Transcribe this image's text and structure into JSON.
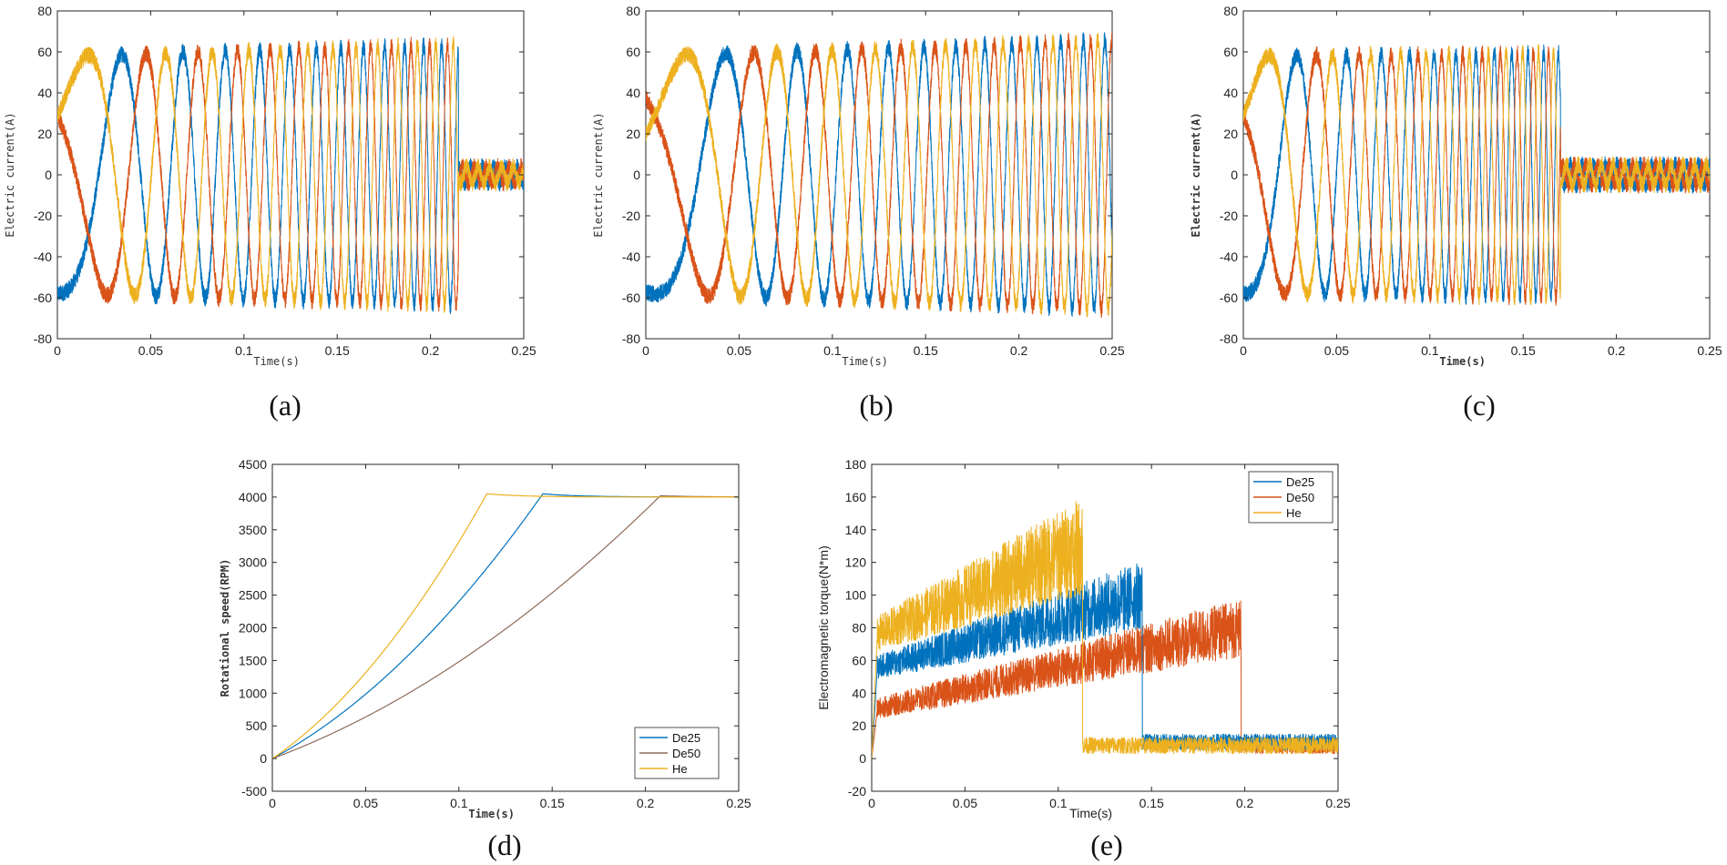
{
  "colors": {
    "phase_blue": "#0072BD",
    "phase_red": "#D95319",
    "phase_yellow": "#EDB120",
    "axis": "#262626"
  },
  "chart_data": [
    {
      "id": "a",
      "type": "line",
      "panel_label": "(a)",
      "xlabel": "Time(s)",
      "ylabel": "Electric current(A)",
      "xlim": [
        0,
        0.25
      ],
      "ylim": [
        -80,
        80
      ],
      "xticks": [
        0,
        0.05,
        0.1,
        0.15,
        0.2,
        0.25
      ],
      "xtick_labels": [
        "0",
        "0.05",
        "0.1",
        "0.15",
        "0.2",
        "0.25"
      ],
      "yticks": [
        -80,
        -60,
        -40,
        -20,
        0,
        20,
        40,
        60,
        80
      ],
      "legend": null,
      "series": [
        {
          "color": "#0072BD",
          "kind": "sine",
          "amp_start": 58,
          "amp_end": 64,
          "freq_start": 6,
          "freq_end": 110,
          "phase": -90,
          "t_end": 0.215,
          "ripple": 4,
          "residual_amp": 4
        },
        {
          "color": "#D95319",
          "kind": "sine",
          "amp_start": 58,
          "amp_end": 64,
          "freq_start": 6,
          "freq_end": 110,
          "phase": 150,
          "t_end": 0.215,
          "ripple": 4,
          "residual_amp": 4
        },
        {
          "color": "#EDB120",
          "kind": "sine",
          "amp_start": 58,
          "amp_end": 64,
          "freq_start": 6,
          "freq_end": 110,
          "phase": 30,
          "t_end": 0.215,
          "ripple": 4,
          "residual_amp": 4
        }
      ]
    },
    {
      "id": "b",
      "type": "line",
      "panel_label": "(b)",
      "xlabel": "Time(s)",
      "ylabel": "Electric current(A)",
      "xlim": [
        0,
        0.25
      ],
      "ylim": [
        -80,
        80
      ],
      "xticks": [
        0,
        0.05,
        0.1,
        0.15,
        0.2,
        0.25
      ],
      "xtick_labels": [
        "0",
        "0.05",
        "0.1",
        "0.15",
        "0.2",
        "0.25"
      ],
      "yticks": [
        -80,
        -60,
        -40,
        -20,
        0,
        20,
        40,
        60,
        80
      ],
      "legend": null,
      "series": [
        {
          "color": "#0072BD",
          "kind": "sine",
          "amp_start": 58,
          "amp_end": 66,
          "freq_start": 5,
          "freq_end": 90,
          "phase": -100,
          "t_end": 0.25,
          "ripple": 4,
          "residual_amp": 4
        },
        {
          "color": "#D95319",
          "kind": "sine",
          "amp_start": 58,
          "amp_end": 66,
          "freq_start": 5,
          "freq_end": 90,
          "phase": 140,
          "t_end": 0.25,
          "ripple": 4,
          "residual_amp": 4
        },
        {
          "color": "#EDB120",
          "kind": "sine",
          "amp_start": 58,
          "amp_end": 66,
          "freq_start": 5,
          "freq_end": 90,
          "phase": 20,
          "t_end": 0.25,
          "ripple": 4,
          "residual_amp": 4
        }
      ]
    },
    {
      "id": "c",
      "type": "line",
      "panel_label": "(c)",
      "xlabel": "Time(s)",
      "ylabel": "Electric current(A)",
      "xlim": [
        0,
        0.25
      ],
      "ylim": [
        -80,
        80
      ],
      "xticks": [
        0,
        0.05,
        0.1,
        0.15,
        0.2,
        0.25
      ],
      "xtick_labels": [
        "0",
        "0.05",
        "0.1",
        "0.15",
        "0.2",
        "0.25"
      ],
      "yticks": [
        -80,
        -60,
        -40,
        -20,
        0,
        20,
        40,
        60,
        80
      ],
      "legend": null,
      "series": [
        {
          "color": "#0072BD",
          "kind": "sine",
          "amp_start": 58,
          "amp_end": 60,
          "freq_start": 7,
          "freq_end": 130,
          "phase": -90,
          "t_end": 0.17,
          "ripple": 4,
          "residual_amp": 5
        },
        {
          "color": "#D95319",
          "kind": "sine",
          "amp_start": 58,
          "amp_end": 60,
          "freq_start": 7,
          "freq_end": 130,
          "phase": 150,
          "t_end": 0.17,
          "ripple": 4,
          "residual_amp": 5
        },
        {
          "color": "#EDB120",
          "kind": "sine",
          "amp_start": 58,
          "amp_end": 60,
          "freq_start": 7,
          "freq_end": 130,
          "phase": 30,
          "t_end": 0.17,
          "ripple": 4,
          "residual_amp": 5
        }
      ]
    },
    {
      "id": "d",
      "type": "line",
      "panel_label": "(d)",
      "xlabel": "Time(s)",
      "ylabel": "Rotational speed(RPM)",
      "xlim": [
        0,
        0.25
      ],
      "ylim": [
        -500,
        4500
      ],
      "xticks": [
        0,
        0.05,
        0.1,
        0.15,
        0.2,
        0.25
      ],
      "xtick_labels": [
        "0",
        "0.05",
        "0.1",
        "0.15",
        "0.2",
        "0.25"
      ],
      "yticks": [
        -500,
        0,
        500,
        1000,
        1500,
        2000,
        2500,
        3000,
        3500,
        4000,
        4500
      ],
      "legend": {
        "position": "bottom-right",
        "entries": [
          "De25",
          "De50",
          "He"
        ]
      },
      "series": [
        {
          "name": "De25",
          "color": "#0072BD",
          "kind": "ramp",
          "t_reach": 0.145,
          "target": 4000,
          "overshoot": 50
        },
        {
          "name": "De50",
          "color": "#8C6B5A",
          "kind": "ramp",
          "t_reach": 0.208,
          "target": 4000,
          "overshoot": 20
        },
        {
          "name": "He",
          "color": "#EDB120",
          "kind": "ramp",
          "t_reach": 0.115,
          "target": 4000,
          "overshoot": 50
        }
      ]
    },
    {
      "id": "e",
      "type": "line",
      "panel_label": "(e)",
      "xlabel": "Time(s)",
      "ylabel": "Electromagnetic torque(N*m)",
      "xlim": [
        0,
        0.25
      ],
      "ylim": [
        -20,
        180
      ],
      "xticks": [
        0,
        0.05,
        0.1,
        0.15,
        0.2,
        0.25
      ],
      "xtick_labels": [
        "0",
        "0.05",
        "0.1",
        "0.15",
        "0.2",
        "0.25"
      ],
      "yticks": [
        -20,
        0,
        20,
        40,
        60,
        80,
        100,
        120,
        140,
        160,
        180
      ],
      "legend": {
        "position": "top-right",
        "entries": [
          "De25",
          "De50",
          "He"
        ]
      },
      "series": [
        {
          "name": "De50",
          "color": "#D95319",
          "kind": "torque",
          "start": 30,
          "end": 80,
          "t_drop": 0.198,
          "noise": 12,
          "final": 8
        },
        {
          "name": "De25",
          "color": "#0072BD",
          "kind": "torque",
          "start": 55,
          "end": 100,
          "t_drop": 0.145,
          "noise": 14,
          "final": 10
        },
        {
          "name": "He",
          "color": "#EDB120",
          "kind": "torque",
          "start": 75,
          "end": 130,
          "t_drop": 0.113,
          "noise": 20,
          "final": 8
        }
      ]
    }
  ]
}
